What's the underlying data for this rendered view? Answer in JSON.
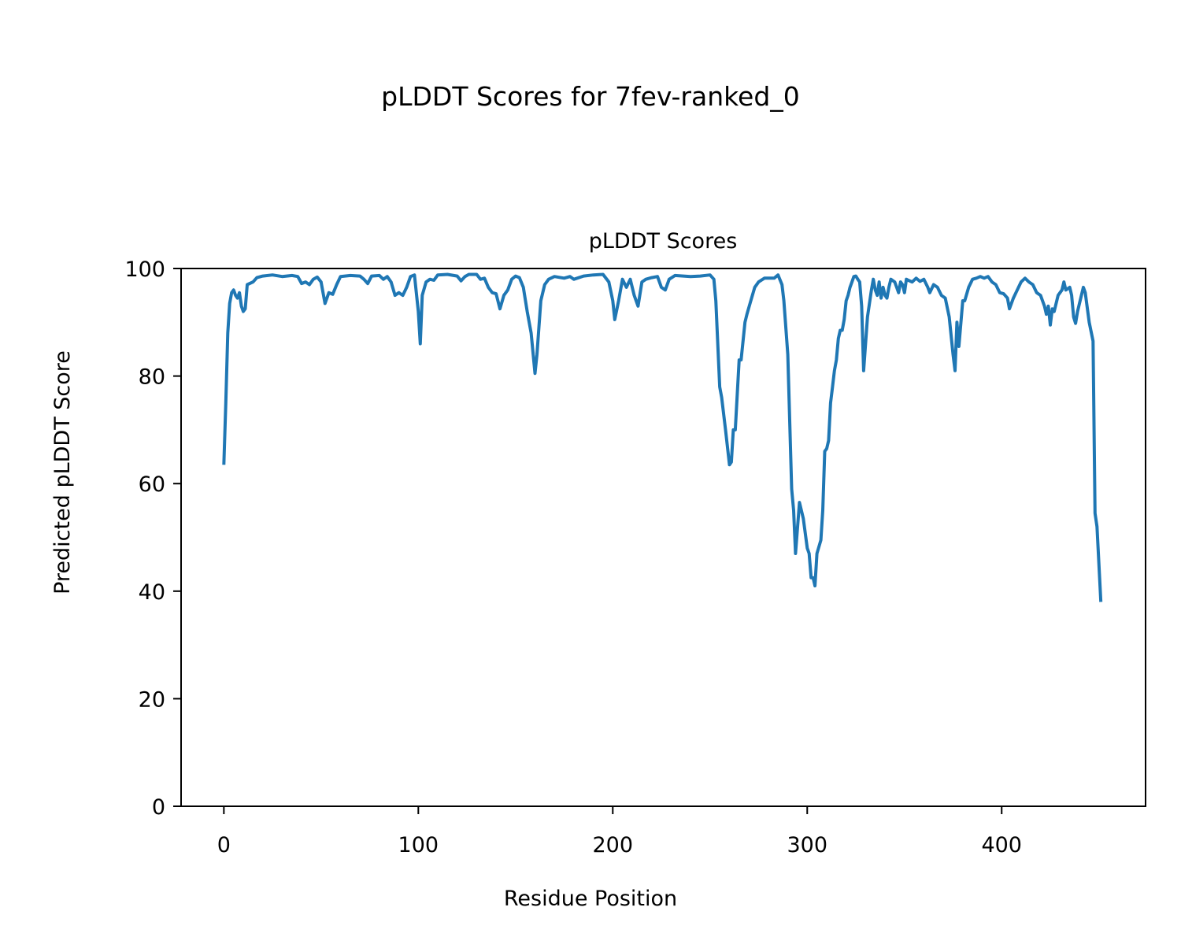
{
  "chart_data": {
    "type": "line",
    "suptitle": "pLDDT Scores for 7fev-ranked_0",
    "title": "pLDDT Scores",
    "xlabel": "Residue Position",
    "ylabel": "Predicted pLDDT Score",
    "xlim": [
      -22,
      474
    ],
    "ylim": [
      0,
      100
    ],
    "xticks": [
      0,
      100,
      200,
      300,
      400
    ],
    "yticks": [
      0,
      20,
      40,
      60,
      80,
      100
    ],
    "grid": false,
    "line_color": "#1f77b4",
    "series": [
      {
        "name": "pLDDT",
        "points": [
          [
            0,
            63.5
          ],
          [
            1,
            75
          ],
          [
            2,
            88
          ],
          [
            3,
            93.5
          ],
          [
            4,
            95.5
          ],
          [
            5,
            96
          ],
          [
            6,
            95
          ],
          [
            7,
            94.5
          ],
          [
            8,
            95.5
          ],
          [
            9,
            93
          ],
          [
            10,
            92
          ],
          [
            11,
            92.5
          ],
          [
            12,
            97
          ],
          [
            15,
            97.5
          ],
          [
            17,
            98.3
          ],
          [
            20,
            98.6
          ],
          [
            25,
            98.8
          ],
          [
            30,
            98.5
          ],
          [
            35,
            98.7
          ],
          [
            38,
            98.5
          ],
          [
            40,
            97.2
          ],
          [
            42,
            97.5
          ],
          [
            44,
            97
          ],
          [
            46,
            98
          ],
          [
            48,
            98.4
          ],
          [
            50,
            97.5
          ],
          [
            52,
            93.5
          ],
          [
            54,
            95.5
          ],
          [
            56,
            95.2
          ],
          [
            58,
            97
          ],
          [
            60,
            98.5
          ],
          [
            65,
            98.7
          ],
          [
            70,
            98.6
          ],
          [
            72,
            98
          ],
          [
            74,
            97.2
          ],
          [
            76,
            98.6
          ],
          [
            80,
            98.7
          ],
          [
            82,
            98
          ],
          [
            84,
            98.5
          ],
          [
            86,
            97.5
          ],
          [
            88,
            95
          ],
          [
            90,
            95.5
          ],
          [
            92,
            95
          ],
          [
            94,
            96.5
          ],
          [
            96,
            98.5
          ],
          [
            98,
            98.8
          ],
          [
            100,
            92
          ],
          [
            101,
            86
          ],
          [
            102,
            95
          ],
          [
            104,
            97.5
          ],
          [
            106,
            98
          ],
          [
            108,
            97.8
          ],
          [
            110,
            98.8
          ],
          [
            115,
            98.9
          ],
          [
            120,
            98.6
          ],
          [
            122,
            97.7
          ],
          [
            124,
            98.5
          ],
          [
            126,
            98.9
          ],
          [
            130,
            98.9
          ],
          [
            132,
            98
          ],
          [
            134,
            98.2
          ],
          [
            136,
            96.5
          ],
          [
            138,
            95.5
          ],
          [
            140,
            95.3
          ],
          [
            142,
            92.5
          ],
          [
            144,
            95
          ],
          [
            146,
            96
          ],
          [
            148,
            98
          ],
          [
            150,
            98.6
          ],
          [
            152,
            98.3
          ],
          [
            154,
            96.5
          ],
          [
            156,
            92
          ],
          [
            158,
            88
          ],
          [
            160,
            80.5
          ],
          [
            161,
            84
          ],
          [
            163,
            94
          ],
          [
            165,
            97
          ],
          [
            167,
            98
          ],
          [
            170,
            98.5
          ],
          [
            175,
            98.2
          ],
          [
            178,
            98.5
          ],
          [
            180,
            98
          ],
          [
            185,
            98.6
          ],
          [
            190,
            98.8
          ],
          [
            195,
            98.9
          ],
          [
            198,
            97.5
          ],
          [
            200,
            94
          ],
          [
            201,
            90.5
          ],
          [
            203,
            94
          ],
          [
            205,
            98
          ],
          [
            207,
            96.5
          ],
          [
            209,
            98
          ],
          [
            211,
            95
          ],
          [
            213,
            93
          ],
          [
            215,
            97.5
          ],
          [
            217,
            98
          ],
          [
            220,
            98.3
          ],
          [
            223,
            98.5
          ],
          [
            225,
            96.5
          ],
          [
            227,
            96
          ],
          [
            229,
            98
          ],
          [
            232,
            98.7
          ],
          [
            240,
            98.5
          ],
          [
            245,
            98.6
          ],
          [
            250,
            98.8
          ],
          [
            252,
            98
          ],
          [
            253,
            94
          ],
          [
            255,
            78
          ],
          [
            256,
            76
          ],
          [
            258,
            70
          ],
          [
            260,
            63.5
          ],
          [
            261,
            64
          ],
          [
            262,
            70
          ],
          [
            263,
            70
          ],
          [
            265,
            83
          ],
          [
            266,
            83
          ],
          [
            268,
            90
          ],
          [
            269,
            91.5
          ],
          [
            271,
            94
          ],
          [
            273,
            96.5
          ],
          [
            275,
            97.5
          ],
          [
            278,
            98.2
          ],
          [
            283,
            98.2
          ],
          [
            285,
            98.8
          ],
          [
            287,
            97
          ],
          [
            288,
            94
          ],
          [
            290,
            84
          ],
          [
            292,
            59
          ],
          [
            293,
            55
          ],
          [
            294,
            47
          ],
          [
            296,
            56.5
          ],
          [
            298,
            53.5
          ],
          [
            300,
            48
          ],
          [
            301,
            47
          ],
          [
            302,
            42.5
          ],
          [
            303,
            42.5
          ],
          [
            304,
            41
          ],
          [
            305,
            47
          ],
          [
            307,
            49.5
          ],
          [
            308,
            55
          ],
          [
            309,
            66
          ],
          [
            310,
            66.5
          ],
          [
            311,
            68
          ],
          [
            312,
            75
          ],
          [
            313,
            78
          ],
          [
            314,
            81
          ],
          [
            315,
            83
          ],
          [
            316,
            87
          ],
          [
            317,
            88.5
          ],
          [
            318,
            88.5
          ],
          [
            319,
            90.5
          ],
          [
            320,
            94
          ],
          [
            321,
            95
          ],
          [
            322,
            96.5
          ],
          [
            323,
            97.5
          ],
          [
            324,
            98.5
          ],
          [
            325,
            98.6
          ],
          [
            326,
            98
          ],
          [
            327,
            97.5
          ],
          [
            328,
            93
          ],
          [
            329,
            81
          ],
          [
            331,
            91
          ],
          [
            333,
            96
          ],
          [
            334,
            98
          ],
          [
            335,
            96
          ],
          [
            336,
            95
          ],
          [
            337,
            97.5
          ],
          [
            338,
            94.5
          ],
          [
            339,
            96.5
          ],
          [
            340,
            95
          ],
          [
            341,
            94.5
          ],
          [
            342,
            96.5
          ],
          [
            343,
            98
          ],
          [
            345,
            97.5
          ],
          [
            346,
            96.5
          ],
          [
            347,
            95.5
          ],
          [
            348,
            97.5
          ],
          [
            349,
            97
          ],
          [
            350,
            95.5
          ],
          [
            351,
            98
          ],
          [
            352,
            97.8
          ],
          [
            354,
            97.5
          ],
          [
            356,
            98.2
          ],
          [
            358,
            97.6
          ],
          [
            360,
            98
          ],
          [
            362,
            96.5
          ],
          [
            363,
            95.5
          ],
          [
            365,
            97
          ],
          [
            367,
            96.5
          ],
          [
            369,
            95
          ],
          [
            371,
            94.5
          ],
          [
            373,
            91
          ],
          [
            375,
            84
          ],
          [
            376,
            81
          ],
          [
            377,
            90
          ],
          [
            378,
            85.5
          ],
          [
            380,
            94
          ],
          [
            381,
            94
          ],
          [
            383,
            96.5
          ],
          [
            385,
            98
          ],
          [
            387,
            98.2
          ],
          [
            389,
            98.5
          ],
          [
            391,
            98.2
          ],
          [
            393,
            98.5
          ],
          [
            395,
            97.5
          ],
          [
            397,
            97
          ],
          [
            399,
            95.5
          ],
          [
            401,
            95.3
          ],
          [
            403,
            94.5
          ],
          [
            404,
            92.5
          ],
          [
            406,
            94.5
          ],
          [
            408,
            96
          ],
          [
            410,
            97.5
          ],
          [
            412,
            98.2
          ],
          [
            414,
            97.5
          ],
          [
            416,
            97
          ],
          [
            418,
            95.5
          ],
          [
            420,
            95
          ],
          [
            422,
            93
          ],
          [
            423,
            91.5
          ],
          [
            424,
            93
          ],
          [
            425,
            89.5
          ],
          [
            426,
            92.5
          ],
          [
            427,
            92
          ],
          [
            429,
            95
          ],
          [
            431,
            96
          ],
          [
            432,
            97.5
          ],
          [
            433,
            96
          ],
          [
            435,
            96.5
          ],
          [
            436,
            95
          ],
          [
            437,
            91
          ],
          [
            438,
            89.8
          ],
          [
            439,
            92
          ],
          [
            441,
            95
          ],
          [
            442,
            96.5
          ],
          [
            443,
            95.5
          ],
          [
            445,
            90
          ],
          [
            447,
            86.5
          ],
          [
            448,
            54.5
          ],
          [
            449,
            52
          ],
          [
            451,
            38
          ]
        ]
      }
    ]
  }
}
